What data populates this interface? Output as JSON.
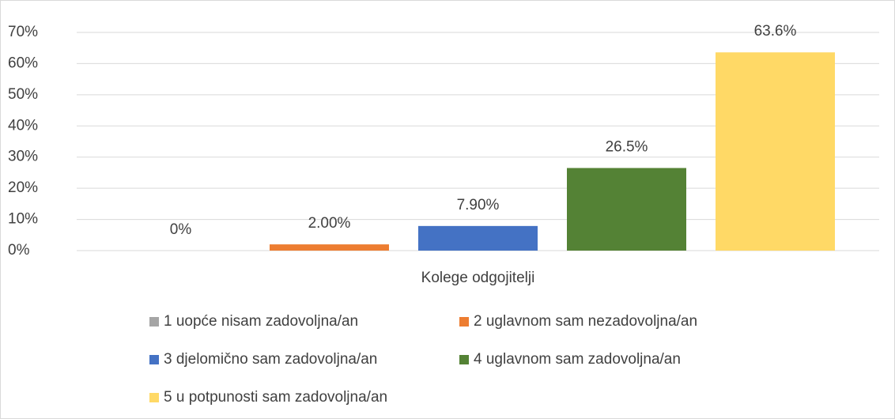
{
  "chart_data": {
    "type": "bar",
    "categories": [
      "Kolege odgojitelji"
    ],
    "series": [
      {
        "name": "1 uopće nisam zadovoljna/an",
        "color": "#a5a5a5",
        "values": [
          0
        ],
        "value_labels": [
          "0%"
        ]
      },
      {
        "name": "2 uglavnom sam nezadovoljna/an",
        "color": "#ed7d31",
        "values": [
          2
        ],
        "value_labels": [
          "2.00%"
        ]
      },
      {
        "name": "3 djelomično sam zadovoljna/an",
        "color": "#4472c4",
        "values": [
          7.9
        ],
        "value_labels": [
          "7.90%"
        ]
      },
      {
        "name": "4 uglavnom sam zadovoljna/an",
        "color": "#548235",
        "values": [
          26.5
        ],
        "value_labels": [
          "26.5%"
        ]
      },
      {
        "name": "5 u potpunosti sam zadovoljna/an",
        "color": "#ffd966",
        "values": [
          63.6
        ],
        "value_labels": [
          "63.6%"
        ]
      }
    ],
    "ylim": [
      0,
      70
    ],
    "yticks": [
      {
        "value": 0,
        "label": "0%"
      },
      {
        "value": 10,
        "label": "10%"
      },
      {
        "value": 20,
        "label": "20%"
      },
      {
        "value": 30,
        "label": "30%"
      },
      {
        "value": 40,
        "label": "40%"
      },
      {
        "value": 50,
        "label": "50%"
      },
      {
        "value": 60,
        "label": "60%"
      },
      {
        "value": 70,
        "label": "70%"
      }
    ],
    "grid": true,
    "legend": "bottom"
  }
}
